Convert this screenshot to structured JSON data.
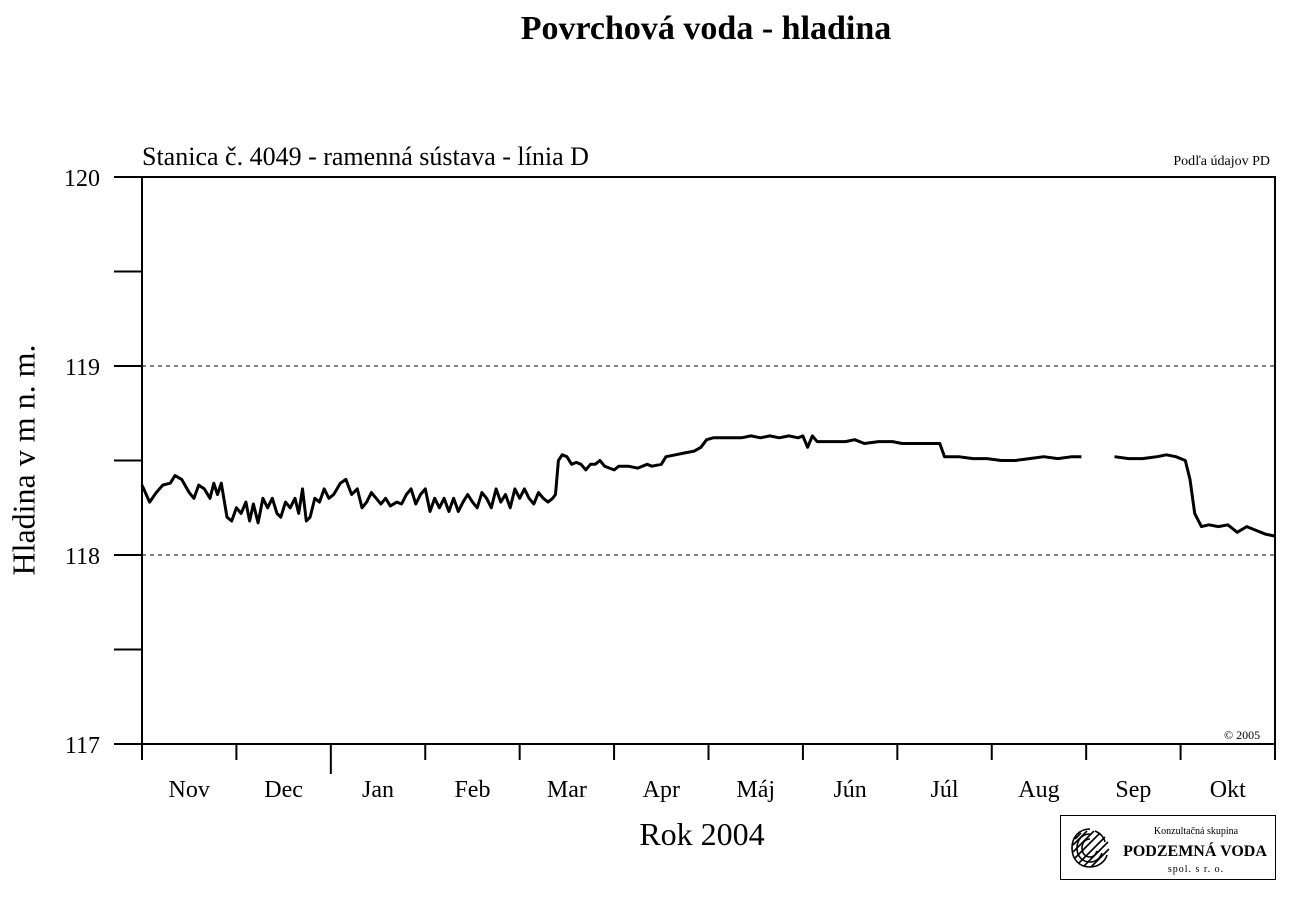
{
  "chart_data": {
    "type": "line",
    "title": "Povrchová voda - hladina",
    "subtitle": "Stanica č. 4049 - ramenná sústava - línia D",
    "source_note": "Podľa údajov PD",
    "copyright": "© 2005",
    "xlabel": "Rok 2004",
    "ylabel": "Hladina v m n. m.",
    "ylim": [
      117,
      120
    ],
    "y_ticks": [
      "117",
      "118",
      "119",
      "120"
    ],
    "y_gridlines": [
      118,
      119
    ],
    "x_months": [
      "Nov",
      "Dec",
      "Jan",
      "Feb",
      "Mar",
      "Apr",
      "Máj",
      "Jún",
      "Júl",
      "Aug",
      "Sep",
      "Okt"
    ],
    "xlim_months": [
      0,
      12
    ],
    "grid": "dashed horizontal at 118 and 119",
    "line_color": "#000000",
    "series": [
      {
        "segments": [
          [
            [
              0.0,
              118.37
            ],
            [
              0.08,
              118.28
            ],
            [
              0.15,
              118.33
            ],
            [
              0.22,
              118.37
            ],
            [
              0.3,
              118.38
            ],
            [
              0.35,
              118.42
            ],
            [
              0.42,
              118.4
            ],
            [
              0.5,
              118.33
            ],
            [
              0.55,
              118.3
            ],
            [
              0.6,
              118.37
            ],
            [
              0.66,
              118.35
            ],
            [
              0.72,
              118.3
            ],
            [
              0.76,
              118.38
            ],
            [
              0.8,
              118.32
            ],
            [
              0.84,
              118.38
            ],
            [
              0.9,
              118.2
            ],
            [
              0.95,
              118.18
            ],
            [
              1.0,
              118.25
            ],
            [
              1.05,
              118.22
            ],
            [
              1.1,
              118.28
            ],
            [
              1.14,
              118.18
            ],
            [
              1.18,
              118.27
            ],
            [
              1.23,
              118.17
            ],
            [
              1.28,
              118.3
            ],
            [
              1.33,
              118.25
            ],
            [
              1.38,
              118.3
            ],
            [
              1.43,
              118.22
            ],
            [
              1.47,
              118.2
            ],
            [
              1.52,
              118.28
            ],
            [
              1.57,
              118.25
            ],
            [
              1.62,
              118.3
            ],
            [
              1.66,
              118.22
            ],
            [
              1.7,
              118.35
            ],
            [
              1.74,
              118.18
            ],
            [
              1.78,
              118.2
            ],
            [
              1.83,
              118.3
            ],
            [
              1.88,
              118.28
            ],
            [
              1.93,
              118.35
            ],
            [
              1.98,
              118.3
            ],
            [
              2.03,
              118.32
            ],
            [
              2.1,
              118.38
            ],
            [
              2.16,
              118.4
            ],
            [
              2.22,
              118.32
            ],
            [
              2.28,
              118.35
            ],
            [
              2.33,
              118.25
            ],
            [
              2.38,
              118.28
            ],
            [
              2.43,
              118.33
            ],
            [
              2.48,
              118.3
            ],
            [
              2.53,
              118.27
            ],
            [
              2.58,
              118.3
            ],
            [
              2.63,
              118.26
            ],
            [
              2.7,
              118.28
            ],
            [
              2.75,
              118.27
            ],
            [
              2.8,
              118.32
            ],
            [
              2.85,
              118.35
            ],
            [
              2.9,
              118.27
            ],
            [
              2.95,
              118.32
            ],
            [
              3.0,
              118.35
            ],
            [
              3.05,
              118.23
            ],
            [
              3.1,
              118.3
            ],
            [
              3.15,
              118.25
            ],
            [
              3.2,
              118.3
            ],
            [
              3.25,
              118.23
            ],
            [
              3.3,
              118.3
            ],
            [
              3.35,
              118.23
            ],
            [
              3.4,
              118.28
            ],
            [
              3.45,
              118.32
            ],
            [
              3.5,
              118.28
            ],
            [
              3.55,
              118.25
            ],
            [
              3.6,
              118.33
            ],
            [
              3.65,
              118.3
            ],
            [
              3.7,
              118.25
            ],
            [
              3.75,
              118.35
            ],
            [
              3.8,
              118.28
            ],
            [
              3.85,
              118.32
            ],
            [
              3.9,
              118.25
            ],
            [
              3.95,
              118.35
            ],
            [
              4.0,
              118.3
            ],
            [
              4.05,
              118.35
            ],
            [
              4.1,
              118.3
            ],
            [
              4.15,
              118.27
            ],
            [
              4.2,
              118.33
            ],
            [
              4.25,
              118.3
            ],
            [
              4.3,
              118.28
            ],
            [
              4.35,
              118.3
            ],
            [
              4.38,
              118.32
            ],
            [
              4.41,
              118.5
            ],
            [
              4.45,
              118.53
            ],
            [
              4.5,
              118.52
            ],
            [
              4.55,
              118.48
            ],
            [
              4.6,
              118.49
            ],
            [
              4.65,
              118.48
            ],
            [
              4.7,
              118.45
            ],
            [
              4.75,
              118.48
            ],
            [
              4.8,
              118.48
            ],
            [
              4.85,
              118.5
            ],
            [
              4.9,
              118.47
            ],
            [
              4.95,
              118.46
            ],
            [
              5.0,
              118.45
            ],
            [
              5.05,
              118.47
            ],
            [
              5.15,
              118.47
            ],
            [
              5.25,
              118.46
            ],
            [
              5.35,
              118.48
            ],
            [
              5.4,
              118.47
            ],
            [
              5.5,
              118.48
            ],
            [
              5.55,
              118.52
            ],
            [
              5.65,
              118.53
            ],
            [
              5.75,
              118.54
            ],
            [
              5.85,
              118.55
            ],
            [
              5.92,
              118.57
            ],
            [
              5.98,
              118.61
            ],
            [
              6.05,
              118.62
            ],
            [
              6.2,
              118.62
            ],
            [
              6.35,
              118.62
            ],
            [
              6.45,
              118.63
            ],
            [
              6.55,
              118.62
            ],
            [
              6.65,
              118.63
            ],
            [
              6.75,
              118.62
            ],
            [
              6.85,
              118.63
            ],
            [
              6.95,
              118.62
            ],
            [
              7.0,
              118.63
            ],
            [
              7.05,
              118.57
            ],
            [
              7.1,
              118.63
            ],
            [
              7.15,
              118.6
            ],
            [
              7.3,
              118.6
            ],
            [
              7.45,
              118.6
            ],
            [
              7.55,
              118.61
            ],
            [
              7.65,
              118.59
            ],
            [
              7.8,
              118.6
            ],
            [
              7.95,
              118.6
            ],
            [
              8.05,
              118.59
            ],
            [
              8.2,
              118.59
            ],
            [
              8.35,
              118.59
            ],
            [
              8.45,
              118.59
            ],
            [
              8.5,
              118.52
            ],
            [
              8.65,
              118.52
            ],
            [
              8.8,
              118.51
            ],
            [
              8.95,
              118.51
            ],
            [
              9.1,
              118.5
            ],
            [
              9.25,
              118.5
            ],
            [
              9.4,
              118.51
            ],
            [
              9.55,
              118.52
            ],
            [
              9.7,
              118.51
            ],
            [
              9.85,
              118.52
            ],
            [
              9.95,
              118.52
            ]
          ],
          [
            [
              10.3,
              118.52
            ],
            [
              10.45,
              118.51
            ],
            [
              10.6,
              118.51
            ],
            [
              10.75,
              118.52
            ],
            [
              10.85,
              118.53
            ],
            [
              10.95,
              118.52
            ],
            [
              11.05,
              118.5
            ],
            [
              11.1,
              118.4
            ],
            [
              11.15,
              118.22
            ],
            [
              11.22,
              118.15
            ],
            [
              11.3,
              118.16
            ],
            [
              11.4,
              118.15
            ],
            [
              11.5,
              118.16
            ],
            [
              11.6,
              118.12
            ],
            [
              11.7,
              118.15
            ],
            [
              11.8,
              118.13
            ],
            [
              11.9,
              118.11
            ],
            [
              12.0,
              118.1
            ]
          ]
        ]
      }
    ]
  },
  "logo": {
    "line1": "Konzultačná skupina",
    "line2": "PODZEMNÁ VODA",
    "line3": "spol. s r. o."
  }
}
